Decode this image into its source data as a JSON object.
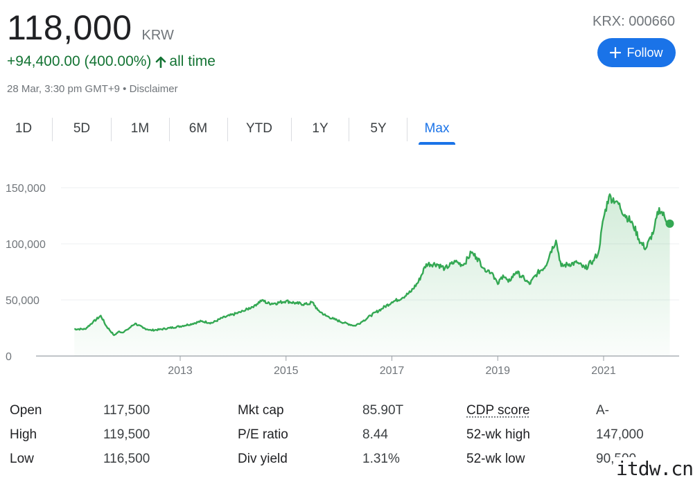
{
  "quote": {
    "price": "118,000",
    "currency": "KRW",
    "ticker": "KRX: 000660",
    "change": "+94,400.00 (400.00%)",
    "change_period": "all time",
    "timestamp": "28 Mar, 3:30 pm GMT+9 • Disclaimer",
    "follow_label": "Follow"
  },
  "tabs": [
    {
      "label": "1D",
      "active": false
    },
    {
      "label": "5D",
      "active": false
    },
    {
      "label": "1M",
      "active": false
    },
    {
      "label": "6M",
      "active": false
    },
    {
      "label": "YTD",
      "active": false
    },
    {
      "label": "1Y",
      "active": false
    },
    {
      "label": "5Y",
      "active": false
    },
    {
      "label": "Max",
      "active": true
    }
  ],
  "colors": {
    "accent": "#1a73e8",
    "positive": "#137333",
    "line": "#34a853"
  },
  "chart_data": {
    "type": "area",
    "title": "",
    "xlabel": "",
    "ylabel": "",
    "ylim": [
      0,
      150000
    ],
    "xlim": [
      2010.75,
      2022.5
    ],
    "y_ticks": [
      "150,000",
      "100,000",
      "50,000",
      "0"
    ],
    "y_tick_values": [
      150000,
      100000,
      50000,
      0
    ],
    "x_ticks": [
      "2013",
      "2015",
      "2017",
      "2019",
      "2021"
    ],
    "x_tick_values": [
      2013,
      2015,
      2017,
      2019,
      2021
    ],
    "grid": true,
    "series": [
      {
        "x": [
          2011.0,
          2011.2,
          2011.35,
          2011.5,
          2011.6,
          2011.75,
          2011.85,
          2011.9,
          2012.0,
          2012.15,
          2012.3,
          2012.45,
          2012.6,
          2012.8,
          2013.0,
          2013.2,
          2013.4,
          2013.6,
          2013.8,
          2014.0,
          2014.2,
          2014.4,
          2014.55,
          2014.65,
          2014.8,
          2015.0,
          2015.2,
          2015.4,
          2015.5,
          2015.6,
          2015.75,
          2015.9,
          2016.1,
          2016.3,
          2016.45,
          2016.6,
          2016.8,
          2017.0,
          2017.2,
          2017.35,
          2017.5,
          2017.65,
          2017.85,
          2018.0,
          2018.2,
          2018.35,
          2018.5,
          2018.6,
          2018.75,
          2018.9,
          2019.0,
          2019.1,
          2019.2,
          2019.35,
          2019.5,
          2019.6,
          2019.75,
          2019.9,
          2020.0,
          2020.1,
          2020.2,
          2020.35,
          2020.5,
          2020.65,
          2020.8,
          2020.9,
          2021.0,
          2021.1,
          2021.25,
          2021.4,
          2021.55,
          2021.7,
          2021.8,
          2021.95,
          2022.05,
          2022.15,
          2022.25
        ],
        "y": [
          24000,
          24000,
          30000,
          36000,
          27000,
          18500,
          22000,
          21000,
          23500,
          29000,
          25000,
          23000,
          23500,
          25000,
          26500,
          28500,
          31000,
          29500,
          34000,
          37000,
          40000,
          45000,
          50000,
          47000,
          47000,
          49000,
          47000,
          46000,
          48000,
          41000,
          36000,
          33000,
          29500,
          27000,
          31000,
          36000,
          42000,
          48000,
          52000,
          57000,
          66000,
          82000,
          82000,
          78000,
          84000,
          81000,
          92000,
          88000,
          78000,
          74000,
          64000,
          72000,
          66000,
          75000,
          69000,
          64000,
          74000,
          80000,
          93000,
          103000,
          80000,
          82000,
          83000,
          78000,
          85000,
          92000,
          123000,
          142000,
          138000,
          126000,
          118000,
          101000,
          96000,
          112000,
          132000,
          124000,
          118000
        ]
      }
    ]
  },
  "stats": [
    {
      "label": "Open",
      "value": "117,500"
    },
    {
      "label": "High",
      "value": "119,500"
    },
    {
      "label": "Low",
      "value": "116,500"
    },
    {
      "label": "Mkt cap",
      "value": "85.90T"
    },
    {
      "label": "P/E ratio",
      "value": "8.44"
    },
    {
      "label": "Div yield",
      "value": "1.31%"
    },
    {
      "label": "CDP score",
      "value": "A-"
    },
    {
      "label": "52-wk high",
      "value": "147,000"
    },
    {
      "label": "52-wk low",
      "value": "90,500"
    }
  ],
  "watermark": "itdw.cn"
}
